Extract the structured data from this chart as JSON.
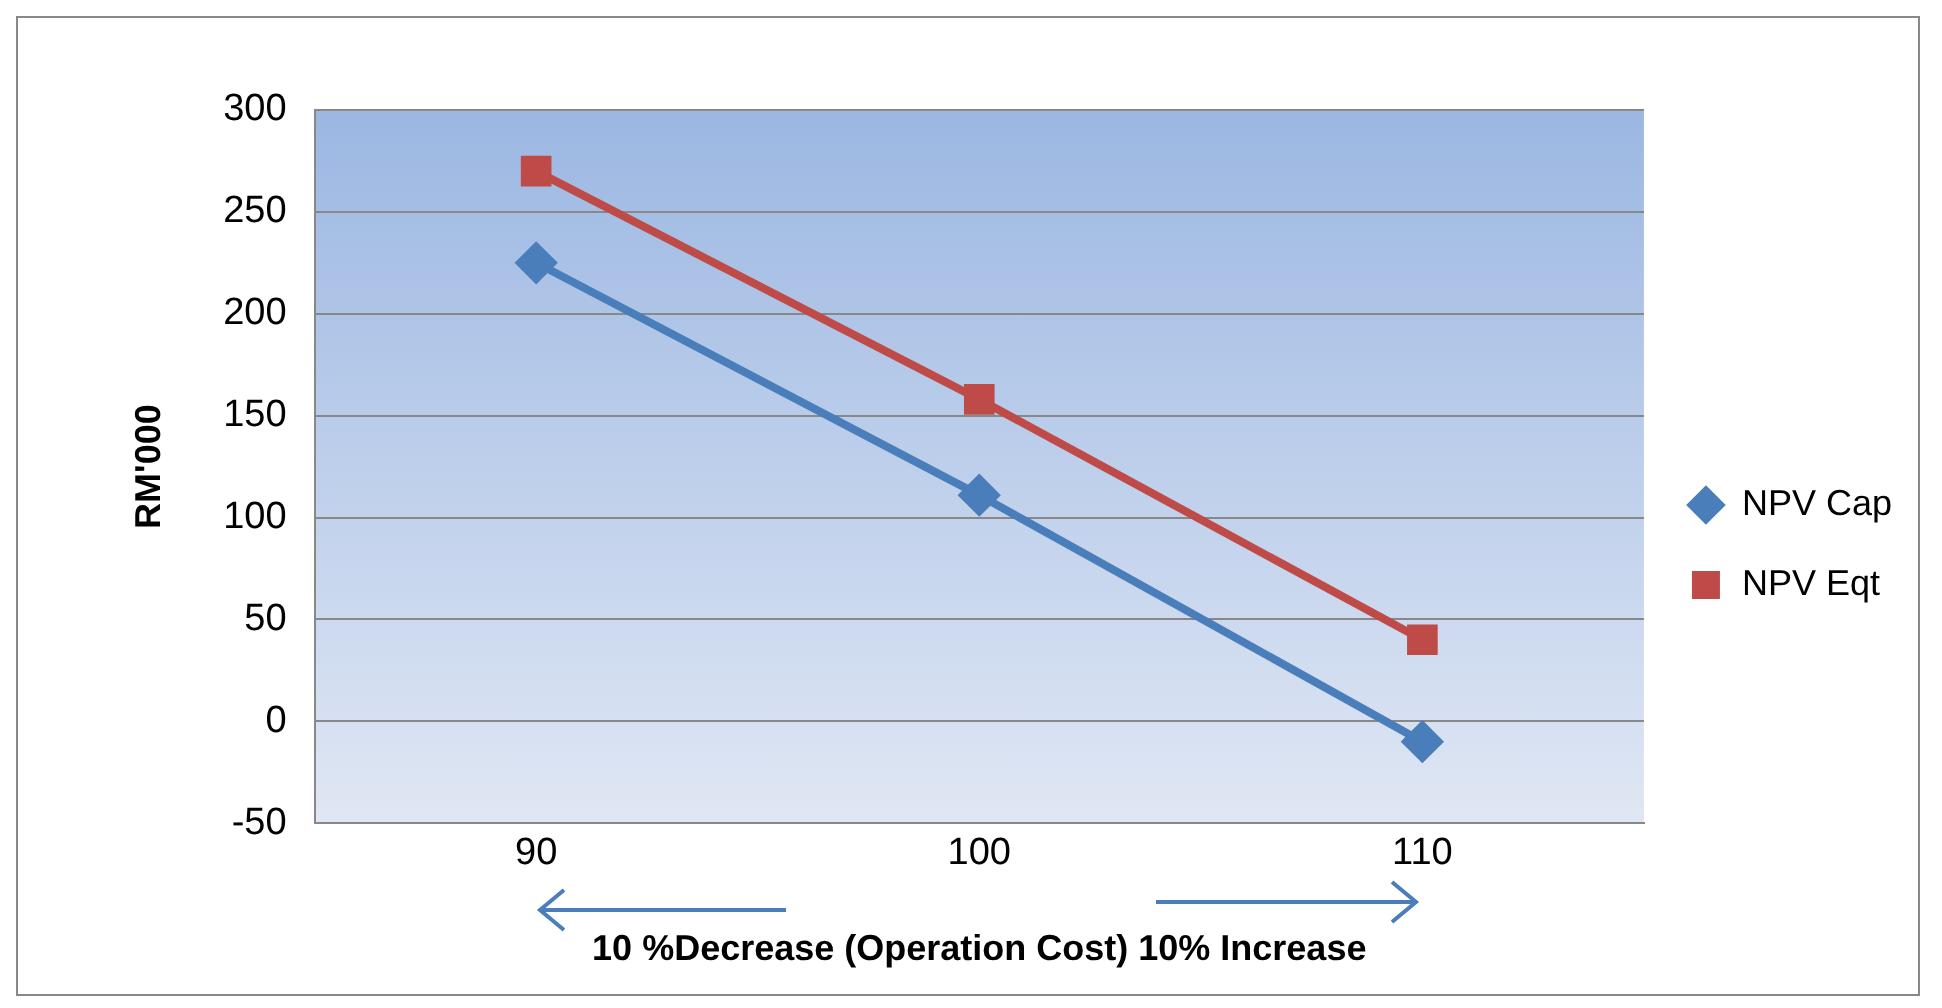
{
  "chart_data": {
    "type": "line",
    "xlabel": "10 %Decrease (Operation Cost) 10% Increase",
    "ylabel": "RM'000",
    "categories": [
      "90",
      "100",
      "110"
    ],
    "series": [
      {
        "name": "NPV Cap",
        "color": "#4a7ebb",
        "marker": "diamond",
        "values": [
          225,
          111,
          -10
        ]
      },
      {
        "name": "NPV Eqt",
        "color": "#be4b48",
        "marker": "square",
        "values": [
          270,
          158,
          40
        ]
      }
    ],
    "ylim": [
      -50,
      300
    ],
    "yticks": [
      -50,
      0,
      50,
      100,
      150,
      200,
      250,
      300
    ],
    "grid": "y",
    "legend": "right",
    "line_style": "solid"
  }
}
